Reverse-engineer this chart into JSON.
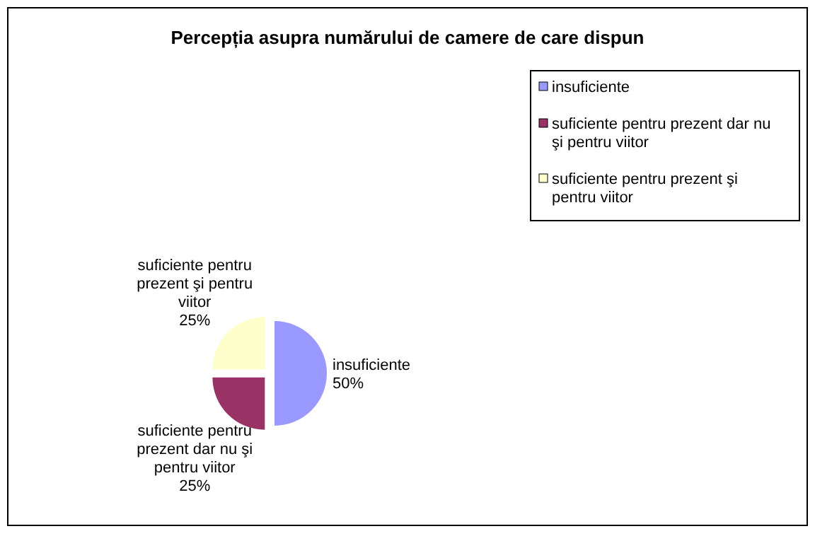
{
  "chart_data": {
    "type": "pie",
    "title": "Percepția asupra numărului de camere de care dispun",
    "categories": [
      "insuficiente",
      "suficiente pentru prezent dar nu şi pentru viitor",
      "suficiente pentru prezent şi pentru viitor"
    ],
    "values": [
      50,
      25,
      25
    ],
    "value_labels": [
      "50%",
      "25%",
      "25%"
    ],
    "colors": [
      "#9999ff",
      "#993366",
      "#ffffcc"
    ],
    "legend": "right"
  }
}
